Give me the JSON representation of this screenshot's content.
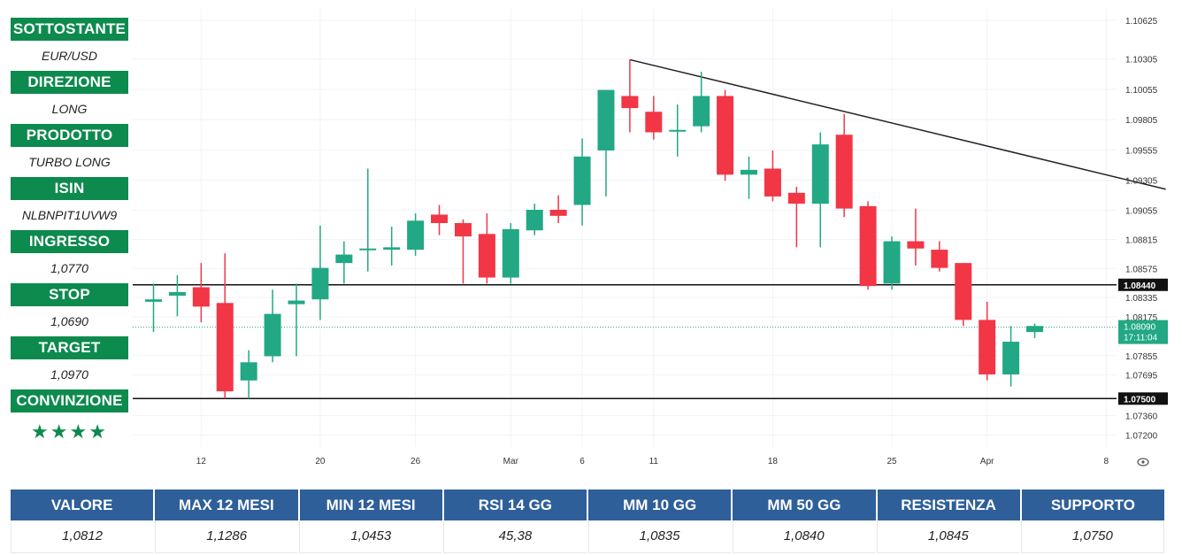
{
  "info": [
    {
      "label": "SOTTOSTANTE",
      "value": "EUR/USD"
    },
    {
      "label": "DIREZIONE",
      "value": "LONG"
    },
    {
      "label": "PRODOTTO",
      "value": "TURBO LONG"
    },
    {
      "label": "ISIN",
      "value": "NLBNPIT1UVW9"
    },
    {
      "label": "INGRESSO",
      "value": "1,0770"
    },
    {
      "label": "STOP",
      "value": "1,0690"
    },
    {
      "label": "TARGET",
      "value": "1,0970"
    },
    {
      "label": "CONVINZIONE",
      "value": "★★★★"
    }
  ],
  "stats": [
    {
      "label": "VALORE",
      "value": "1,0812"
    },
    {
      "label": "MAX 12 MESI",
      "value": "1,1286"
    },
    {
      "label": "MIN 12 MESI",
      "value": "1,0453"
    },
    {
      "label": "RSI 14 GG",
      "value": "45,38"
    },
    {
      "label": "MM 10 GG",
      "value": "1,0835"
    },
    {
      "label": "MM 50 GG",
      "value": "1,0840"
    },
    {
      "label": "RESISTENZA",
      "value": "1,0845"
    },
    {
      "label": "SUPPORTO",
      "value": "1,0750"
    }
  ],
  "colors": {
    "up": "#22a884",
    "down": "#f23645",
    "info_green": "#0d8a4e",
    "stats_blue": "#2e5f99"
  },
  "chart_data": {
    "type": "candlestick",
    "y_ticks": [
      "1.10625",
      "1.10305",
      "1.10055",
      "1.09805",
      "1.09555",
      "1.09305",
      "1.09055",
      "1.08815",
      "1.08575",
      "1.08335",
      "1.08175",
      "1.07855",
      "1.07695",
      "1.07360",
      "1.07200"
    ],
    "x_ticks": [
      {
        "label": "12",
        "idx": 2.5
      },
      {
        "label": "20",
        "idx": 7.5
      },
      {
        "label": "26",
        "idx": 11.5
      },
      {
        "label": "Mar",
        "idx": 15.5
      },
      {
        "label": "6",
        "idx": 18.5
      },
      {
        "label": "11",
        "idx": 21.5
      },
      {
        "label": "18",
        "idx": 26.5
      },
      {
        "label": "25",
        "idx": 31.5
      },
      {
        "label": "Apr",
        "idx": 35.5
      },
      {
        "label": "8",
        "idx": 40.5
      }
    ],
    "ylim": [
      1.071,
      1.1072
    ],
    "candles": [
      {
        "o": 1.083,
        "h": 1.0845,
        "l": 1.0805,
        "c": 1.0832
      },
      {
        "o": 1.0835,
        "h": 1.0852,
        "l": 1.0818,
        "c": 1.0838
      },
      {
        "o": 1.0842,
        "h": 1.0862,
        "l": 1.0813,
        "c": 1.0826
      },
      {
        "o": 1.0829,
        "h": 1.087,
        "l": 1.075,
        "c": 1.0756
      },
      {
        "o": 1.0765,
        "h": 1.079,
        "l": 1.075,
        "c": 1.078
      },
      {
        "o": 1.0785,
        "h": 1.084,
        "l": 1.078,
        "c": 1.082
      },
      {
        "o": 1.0828,
        "h": 1.0845,
        "l": 1.0785,
        "c": 1.0831
      },
      {
        "o": 1.0832,
        "h": 1.0893,
        "l": 1.0815,
        "c": 1.0858
      },
      {
        "o": 1.0862,
        "h": 1.088,
        "l": 1.0845,
        "c": 1.0869
      },
      {
        "o": 1.0873,
        "h": 1.094,
        "l": 1.0855,
        "c": 1.0874
      },
      {
        "o": 1.0873,
        "h": 1.0892,
        "l": 1.086,
        "c": 1.0875
      },
      {
        "o": 1.0873,
        "h": 1.0903,
        "l": 1.0868,
        "c": 1.0897
      },
      {
        "o": 1.0902,
        "h": 1.091,
        "l": 1.0885,
        "c": 1.0895
      },
      {
        "o": 1.0895,
        "h": 1.0898,
        "l": 1.0845,
        "c": 1.0884
      },
      {
        "o": 1.0886,
        "h": 1.0903,
        "l": 1.0845,
        "c": 1.085
      },
      {
        "o": 1.085,
        "h": 1.0895,
        "l": 1.0845,
        "c": 1.089
      },
      {
        "o": 1.0889,
        "h": 1.0911,
        "l": 1.0885,
        "c": 1.0906
      },
      {
        "o": 1.0906,
        "h": 1.0918,
        "l": 1.0895,
        "c": 1.0901
      },
      {
        "o": 1.091,
        "h": 1.0965,
        "l": 1.0893,
        "c": 1.095
      },
      {
        "o": 1.0955,
        "h": 1.1005,
        "l": 1.0917,
        "c": 1.1005
      },
      {
        "o": 1.1,
        "h": 1.103,
        "l": 1.097,
        "c": 1.099
      },
      {
        "o": 1.0987,
        "h": 1.1,
        "l": 1.0964,
        "c": 1.097
      },
      {
        "o": 1.0972,
        "h": 1.0993,
        "l": 1.095,
        "c": 1.0972
      },
      {
        "o": 1.0975,
        "h": 1.102,
        "l": 1.097,
        "c": 1.1
      },
      {
        "o": 1.1,
        "h": 1.1005,
        "l": 1.093,
        "c": 1.0935
      },
      {
        "o": 1.0935,
        "h": 1.095,
        "l": 1.0915,
        "c": 1.0939
      },
      {
        "o": 1.094,
        "h": 1.0955,
        "l": 1.0913,
        "c": 1.0917
      },
      {
        "o": 1.092,
        "h": 1.0925,
        "l": 1.0875,
        "c": 1.0911
      },
      {
        "o": 1.0911,
        "h": 1.097,
        "l": 1.0875,
        "c": 1.096
      },
      {
        "o": 1.0968,
        "h": 1.0985,
        "l": 1.09,
        "c": 1.0907
      },
      {
        "o": 1.0909,
        "h": 1.0913,
        "l": 1.084,
        "c": 1.0843
      },
      {
        "o": 1.0845,
        "h": 1.0884,
        "l": 1.084,
        "c": 1.088
      },
      {
        "o": 1.088,
        "h": 1.0907,
        "l": 1.086,
        "c": 1.0874
      },
      {
        "o": 1.0873,
        "h": 1.088,
        "l": 1.0855,
        "c": 1.0858
      },
      {
        "o": 1.0862,
        "h": 1.0862,
        "l": 1.081,
        "c": 1.0815
      },
      {
        "o": 1.0815,
        "h": 1.083,
        "l": 1.0765,
        "c": 1.077
      },
      {
        "o": 1.077,
        "h": 1.081,
        "l": 1.076,
        "c": 1.0797
      },
      {
        "o": 1.0805,
        "h": 1.0812,
        "l": 1.08,
        "c": 1.081
      }
    ],
    "horizontal_levels": [
      {
        "value": 1.0844,
        "label": "1.08440",
        "style": "solid"
      },
      {
        "value": 1.075,
        "label": "1.07500",
        "style": "solid"
      },
      {
        "value": 1.0809,
        "label": "1.08090",
        "sublabel": "17:11:04",
        "style": "dotted"
      }
    ],
    "trendline": {
      "from": {
        "idx": 20,
        "value": 1.103
      },
      "to": {
        "idx": 42.5,
        "value": 1.0923
      }
    }
  }
}
